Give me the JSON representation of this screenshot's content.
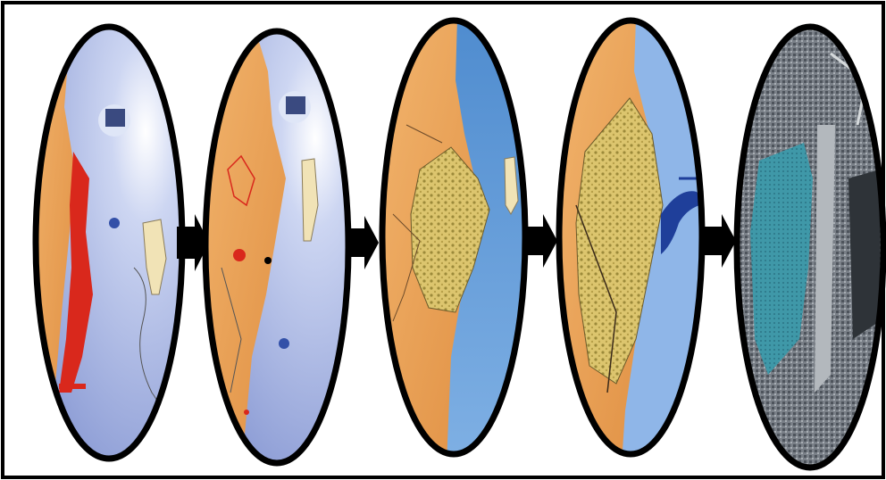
{
  "figure": {
    "stages": [
      {
        "label": "",
        "map_icon": "coastline-map-red-strip",
        "legend": ""
      },
      {
        "label": "",
        "map_icon": "coastline-map-markers",
        "legend": ""
      },
      {
        "label": "",
        "map_icon": "coastline-map-settlement",
        "legend": ""
      },
      {
        "label": "",
        "map_icon": "coastline-map-expanded-settlement",
        "legend": ""
      },
      {
        "label": "",
        "map_icon": "satellite-image",
        "legend": ""
      }
    ],
    "arrow_icon": "right-arrow-icon",
    "colors": {
      "land": "#e9a35b",
      "sea_light": "#b9c6ea",
      "sea": "#5c8fd0",
      "strip": "#d9281c",
      "settlement": "#d8c06a",
      "satellite": "#6a7078",
      "satellite_water": "#3f98a8",
      "ring": "#000000",
      "arrow": "#000000"
    }
  }
}
